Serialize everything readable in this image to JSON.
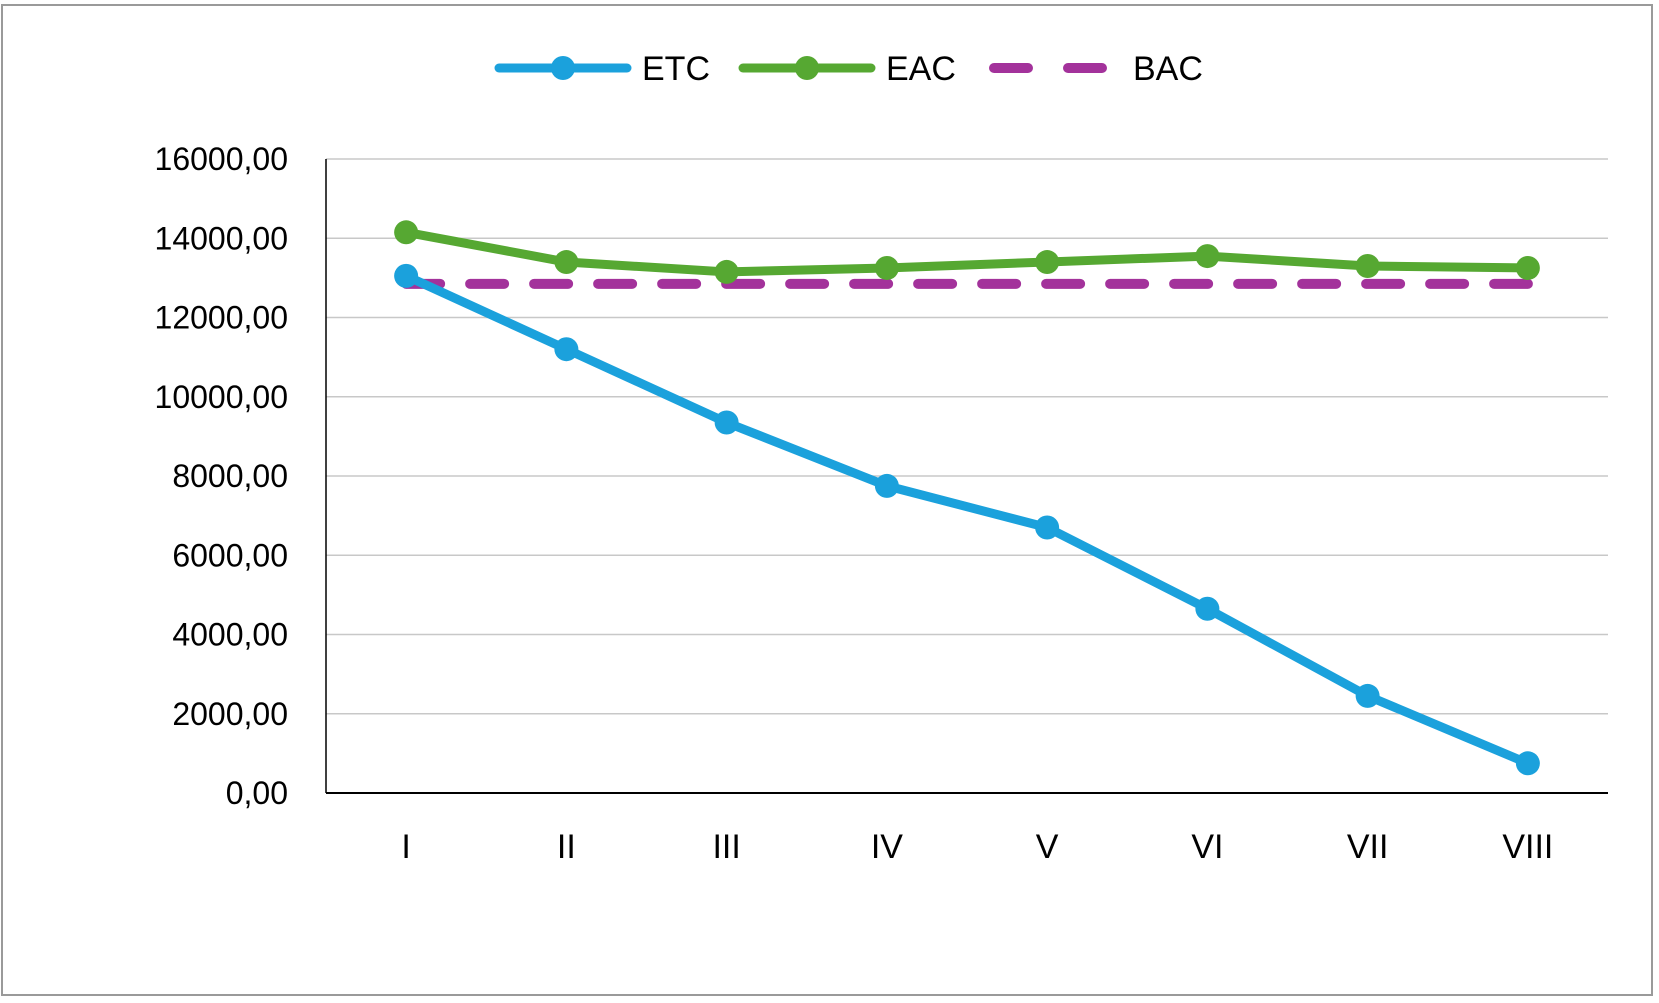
{
  "chart_data": {
    "type": "line",
    "title": "",
    "xlabel": "",
    "ylabel": "",
    "categories": [
      "I",
      "II",
      "III",
      "IV",
      "V",
      "VI",
      "VII",
      "VIII"
    ],
    "ylim": [
      0,
      16000
    ],
    "yticks": [
      0,
      2000,
      4000,
      6000,
      8000,
      10000,
      12000,
      14000,
      16000
    ],
    "ytick_labels": [
      "0,00",
      "2000,00",
      "4000,00",
      "6000,00",
      "8000,00",
      "10000,00",
      "12000,00",
      "14000,00",
      "16000,00"
    ],
    "grid": true,
    "legend": "top-center",
    "series": [
      {
        "name": "ETC",
        "color": "#1ba1dc",
        "style": "solid-markers",
        "values": [
          13050,
          11200,
          9350,
          7750,
          6700,
          4650,
          2450,
          750
        ]
      },
      {
        "name": "EAC",
        "color": "#56a832",
        "style": "solid-markers",
        "values": [
          14150,
          13400,
          13150,
          13250,
          13400,
          13550,
          13300,
          13250
        ]
      },
      {
        "name": "BAC",
        "color": "#a3329b",
        "style": "dashed",
        "values": [
          12850,
          12850,
          12850,
          12850,
          12850,
          12850,
          12850,
          12850
        ]
      }
    ]
  }
}
